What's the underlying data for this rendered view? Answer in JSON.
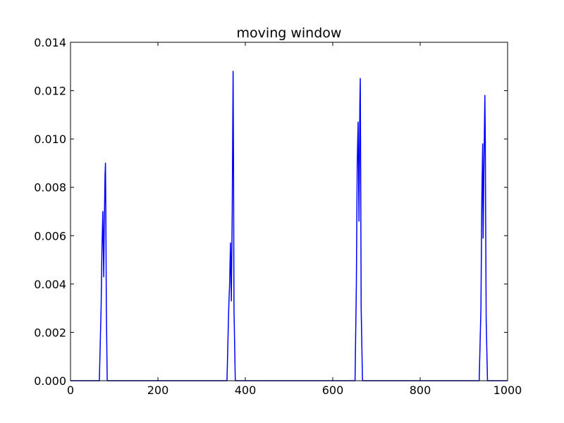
{
  "chart_data": {
    "type": "line",
    "title": "moving window",
    "xlabel": "",
    "ylabel": "",
    "xlim": [
      0,
      1000
    ],
    "ylim": [
      0,
      0.014
    ],
    "x_ticks": [
      0,
      200,
      400,
      600,
      800,
      1000
    ],
    "y_ticks": [
      0.0,
      0.002,
      0.004,
      0.006,
      0.008,
      0.01,
      0.012,
      0.014
    ],
    "x_tick_labels": [
      "0",
      "200",
      "400",
      "600",
      "800",
      "1000"
    ],
    "y_tick_labels": [
      "0.000",
      "0.002",
      "0.004",
      "0.006",
      "0.008",
      "0.010",
      "0.012",
      "0.014"
    ],
    "grid": false,
    "legend": "none",
    "series_color": "#0000ff",
    "series": [
      {
        "points": [
          [
            0,
            0
          ],
          [
            66,
            0
          ],
          [
            70,
            0.003
          ],
          [
            72,
            0.0055
          ],
          [
            74,
            0.007
          ],
          [
            76,
            0.0043
          ],
          [
            77,
            0.006
          ],
          [
            79,
            0.0085
          ],
          [
            80,
            0.009
          ],
          [
            81,
            0.0065
          ],
          [
            82,
            0.003
          ],
          [
            84,
            0
          ],
          [
            358,
            0
          ],
          [
            362,
            0.003
          ],
          [
            364,
            0.004
          ],
          [
            366,
            0.0057
          ],
          [
            368,
            0.0033
          ],
          [
            370,
            0.007
          ],
          [
            371,
            0.01
          ],
          [
            372,
            0.0128
          ],
          [
            373,
            0.009
          ],
          [
            374,
            0.003
          ],
          [
            377,
            0
          ],
          [
            651,
            0
          ],
          [
            654,
            0.004
          ],
          [
            656,
            0.009
          ],
          [
            658,
            0.0107
          ],
          [
            660,
            0.0066
          ],
          [
            661,
            0.009
          ],
          [
            662,
            0.0115
          ],
          [
            663,
            0.0125
          ],
          [
            664,
            0.008
          ],
          [
            665,
            0.003
          ],
          [
            668,
            0
          ],
          [
            935,
            0
          ],
          [
            939,
            0.003
          ],
          [
            941,
            0.0075
          ],
          [
            943,
            0.0098
          ],
          [
            944,
            0.0059
          ],
          [
            946,
            0.009
          ],
          [
            948,
            0.0118
          ],
          [
            949,
            0.01
          ],
          [
            950,
            0.006
          ],
          [
            951,
            0.0025
          ],
          [
            954,
            0
          ],
          [
            1000,
            0
          ]
        ]
      }
    ]
  }
}
